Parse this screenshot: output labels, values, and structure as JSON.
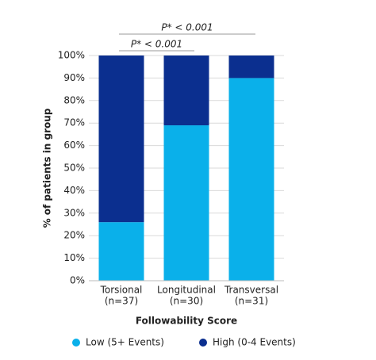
{
  "chart_data": {
    "type": "stacked-bar",
    "categories": [
      [
        "Torsional",
        "(n=37)"
      ],
      [
        "Longitudinal",
        "(n=30)"
      ],
      [
        "Transversal",
        "(n=31)"
      ]
    ],
    "series": [
      {
        "name": "Low (5+ Events)",
        "color": "#0ab0ea",
        "values": [
          26,
          69,
          90
        ]
      },
      {
        "name": "High (0-4 Events)",
        "color": "#0b2f8f",
        "values": [
          74,
          31,
          10
        ]
      }
    ],
    "ylabel": "% of patients in group",
    "xlabel": "Followability Score",
    "ylim": [
      0,
      100
    ],
    "yticks": [
      {
        "value": 0,
        "label": "0%"
      },
      {
        "value": 10,
        "label": "10%"
      },
      {
        "value": 20,
        "label": "20%"
      },
      {
        "value": 30,
        "label": "30%"
      },
      {
        "value": 40,
        "label": "40%"
      },
      {
        "value": 50,
        "label": "50%"
      },
      {
        "value": 60,
        "label": "60%"
      },
      {
        "value": 70,
        "label": "70%"
      },
      {
        "value": 80,
        "label": "80%"
      },
      {
        "value": 90,
        "label": "90%"
      },
      {
        "value": 100,
        "label": "100%"
      }
    ],
    "grid": true,
    "annotations": [
      "P* < 0.001",
      "P* < 0.001"
    ],
    "legend": "bottom"
  }
}
